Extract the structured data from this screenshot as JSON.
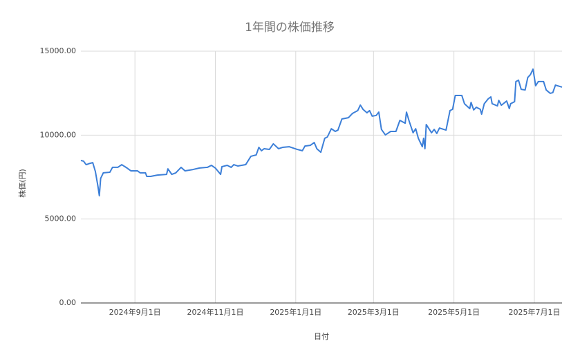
{
  "chart_data": {
    "type": "line",
    "title": "1年間の株価推移",
    "x_label": "日付",
    "y_label": "株価(円)",
    "xlim": [
      "2024-07-22",
      "2025-07-22"
    ],
    "xticks": [
      {
        "value": "2024-09-01",
        "label": "2024年9月1日"
      },
      {
        "value": "2024-11-01",
        "label": "2024年11月1日"
      },
      {
        "value": "2025-01-01",
        "label": "2025年1月1日"
      },
      {
        "value": "2025-03-01",
        "label": "2025年3月1日"
      },
      {
        "value": "2025-05-01",
        "label": "2025年5月1日"
      },
      {
        "value": "2025-07-01",
        "label": "2025年7月1日"
      }
    ],
    "ylim": [
      0,
      15000
    ],
    "yticks": [
      {
        "value": 0,
        "label": "0.00"
      },
      {
        "value": 5000,
        "label": "5000.00"
      },
      {
        "value": 10000,
        "label": "10000.00"
      },
      {
        "value": 15000,
        "label": "15000.00"
      }
    ],
    "grid": true,
    "x": [
      "2024-07-22",
      "2024-07-24",
      "2024-07-26",
      "2024-07-29",
      "2024-07-31",
      "2024-08-02",
      "2024-08-04",
      "2024-08-05",
      "2024-08-06",
      "2024-08-08",
      "2024-08-13",
      "2024-08-15",
      "2024-08-19",
      "2024-08-22",
      "2024-08-26",
      "2024-08-29",
      "2024-09-03",
      "2024-09-05",
      "2024-09-09",
      "2024-09-10",
      "2024-09-13",
      "2024-09-18",
      "2024-09-25",
      "2024-09-26",
      "2024-09-29",
      "2024-10-02",
      "2024-10-06",
      "2024-10-09",
      "2024-10-15",
      "2024-10-20",
      "2024-10-26",
      "2024-10-29",
      "2024-11-01",
      "2024-11-05",
      "2024-11-06",
      "2024-11-10",
      "2024-11-13",
      "2024-11-15",
      "2024-11-18",
      "2024-11-24",
      "2024-11-28",
      "2024-12-02",
      "2024-12-04",
      "2024-12-06",
      "2024-12-08",
      "2024-12-12",
      "2024-12-15",
      "2024-12-19",
      "2024-12-22",
      "2024-12-27",
      "2025-01-02",
      "2025-01-06",
      "2025-01-08",
      "2025-01-12",
      "2025-01-15",
      "2025-01-17",
      "2025-01-20",
      "2025-01-23",
      "2025-01-25",
      "2025-01-28",
      "2025-01-31",
      "2025-02-02",
      "2025-02-05",
      "2025-02-10",
      "2025-02-13",
      "2025-02-17",
      "2025-02-19",
      "2025-02-21",
      "2025-02-24",
      "2025-02-26",
      "2025-02-28",
      "2025-03-03",
      "2025-03-05",
      "2025-03-07",
      "2025-03-10",
      "2025-03-14",
      "2025-03-18",
      "2025-03-21",
      "2025-03-25",
      "2025-03-26",
      "2025-03-28",
      "2025-03-31",
      "2025-04-02",
      "2025-04-04",
      "2025-04-07",
      "2025-04-08",
      "2025-04-09",
      "2025-04-10",
      "2025-04-14",
      "2025-04-16",
      "2025-04-18",
      "2025-04-20",
      "2025-04-25",
      "2025-04-28",
      "2025-04-30",
      "2025-05-02",
      "2025-05-07",
      "2025-05-09",
      "2025-05-13",
      "2025-05-14",
      "2025-05-16",
      "2025-05-18",
      "2025-05-21",
      "2025-05-22",
      "2025-05-24",
      "2025-05-27",
      "2025-05-29",
      "2025-05-30",
      "2025-06-03",
      "2025-06-04",
      "2025-06-06",
      "2025-06-10",
      "2025-06-12",
      "2025-06-13",
      "2025-06-16",
      "2025-06-17",
      "2025-06-19",
      "2025-06-21",
      "2025-06-24",
      "2025-06-26",
      "2025-06-28",
      "2025-06-30",
      "2025-07-02",
      "2025-07-04",
      "2025-07-08",
      "2025-07-10",
      "2025-07-13",
      "2025-07-15",
      "2025-07-17",
      "2025-07-22"
    ],
    "series": [
      {
        "color": "#3c7fd8",
        "values": [
          8490,
          8450,
          8240,
          8320,
          8360,
          7830,
          6920,
          6390,
          7420,
          7750,
          7790,
          8080,
          8080,
          8240,
          8040,
          7870,
          7870,
          7750,
          7750,
          7540,
          7540,
          7620,
          7660,
          7990,
          7660,
          7750,
          8080,
          7870,
          7950,
          8040,
          8080,
          8200,
          8040,
          7660,
          8120,
          8200,
          8080,
          8240,
          8160,
          8240,
          8740,
          8820,
          9270,
          9070,
          9190,
          9150,
          9480,
          9190,
          9270,
          9310,
          9150,
          9070,
          9350,
          9390,
          9560,
          9190,
          8980,
          9810,
          9890,
          10380,
          10220,
          10300,
          10960,
          11040,
          11290,
          11460,
          11790,
          11540,
          11330,
          11460,
          11130,
          11170,
          11370,
          10340,
          10010,
          10220,
          10220,
          10880,
          10710,
          11370,
          10840,
          10140,
          10380,
          9810,
          9310,
          9810,
          9190,
          10630,
          10140,
          10340,
          10100,
          10420,
          10300,
          11460,
          11540,
          12360,
          12360,
          11870,
          11580,
          11950,
          11500,
          11660,
          11540,
          11250,
          11870,
          12160,
          12280,
          11870,
          11740,
          12070,
          11780,
          12030,
          11580,
          11870,
          11990,
          13190,
          13270,
          12730,
          12690,
          13430,
          13600,
          13930,
          12940,
          13190,
          13190,
          12690,
          12490,
          12530,
          12980,
          12860
        ]
      }
    ]
  }
}
